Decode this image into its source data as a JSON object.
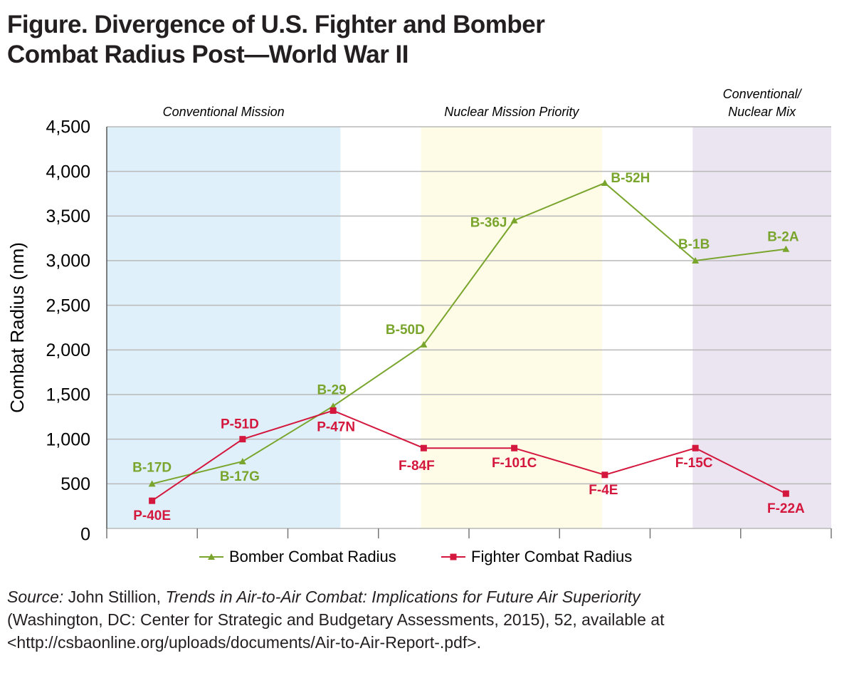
{
  "chart_data": {
    "type": "line",
    "title": [
      "Figure. Divergence of U.S. Fighter and Bomber",
      "Combat Radius Post—World War II"
    ],
    "y_label": "Combat Radius (nm)",
    "categories": [
      null,
      null,
      null,
      null,
      null,
      null,
      null,
      null
    ],
    "regions": [
      {
        "label": [
          "Conventional Mission"
        ],
        "color": "#dff0fa"
      },
      {
        "label": [
          "Nuclear Mission Priority"
        ],
        "color": "#fefbe7"
      },
      {
        "label": [
          "Conventional/",
          "Nuclear Mix"
        ],
        "color": "#ebe5f2"
      }
    ],
    "series": [
      {
        "name": "Bomber Combat Radius",
        "color": "#7aa52d",
        "marker": "triangle",
        "values": [
          500,
          750,
          1370,
          2060,
          3450,
          3870,
          3000,
          3130
        ],
        "labels": [
          "B-17D",
          "B-17G",
          "B-29",
          "B-50D",
          "B-36J",
          "B-52H",
          "B-1B",
          "B-2A"
        ]
      },
      {
        "name": "Fighter Combat Radius",
        "color": "#d4173d",
        "marker": "square",
        "values": [
          310,
          1000,
          1320,
          900,
          900,
          600,
          900,
          390
        ],
        "labels": [
          "P-40E",
          "P-51D",
          "P-47N",
          "F-84F",
          "F-101C",
          "F-4E",
          "F-15C",
          "F-22A"
        ]
      }
    ],
    "ylim": [
      0,
      4500
    ],
    "yticks": [
      0,
      500,
      {
        "value": 1000,
        "label": "1,000"
      },
      {
        "value": 1500,
        "label": "1,500"
      },
      {
        "value": 2000,
        "label": "2,000"
      },
      {
        "value": 2500,
        "label": "2,500"
      },
      {
        "value": 3000,
        "label": "3,000"
      },
      {
        "value": 3500,
        "label": "3,500"
      },
      {
        "value": 4000,
        "label": "4,000"
      },
      {
        "value": 4500,
        "label": "4,500"
      }
    ],
    "grid": true,
    "legend": "bottom",
    "source": [
      [
        {
          "text": "Source:",
          "italic": true
        },
        {
          "text": " John Stillion, "
        },
        {
          "text": "Trends in Air-to-Air Combat: Implications for Future Air Superiority",
          "italic": true
        }
      ],
      [
        {
          "text": "(Washington, DC: Center for Strategic and Budgetary Assessments, 2015), 52, available at"
        }
      ],
      [
        {
          "text": "<http://csbaonline.org/uploads/documents/Air-to-Air-Report-.pdf>."
        }
      ]
    ]
  }
}
